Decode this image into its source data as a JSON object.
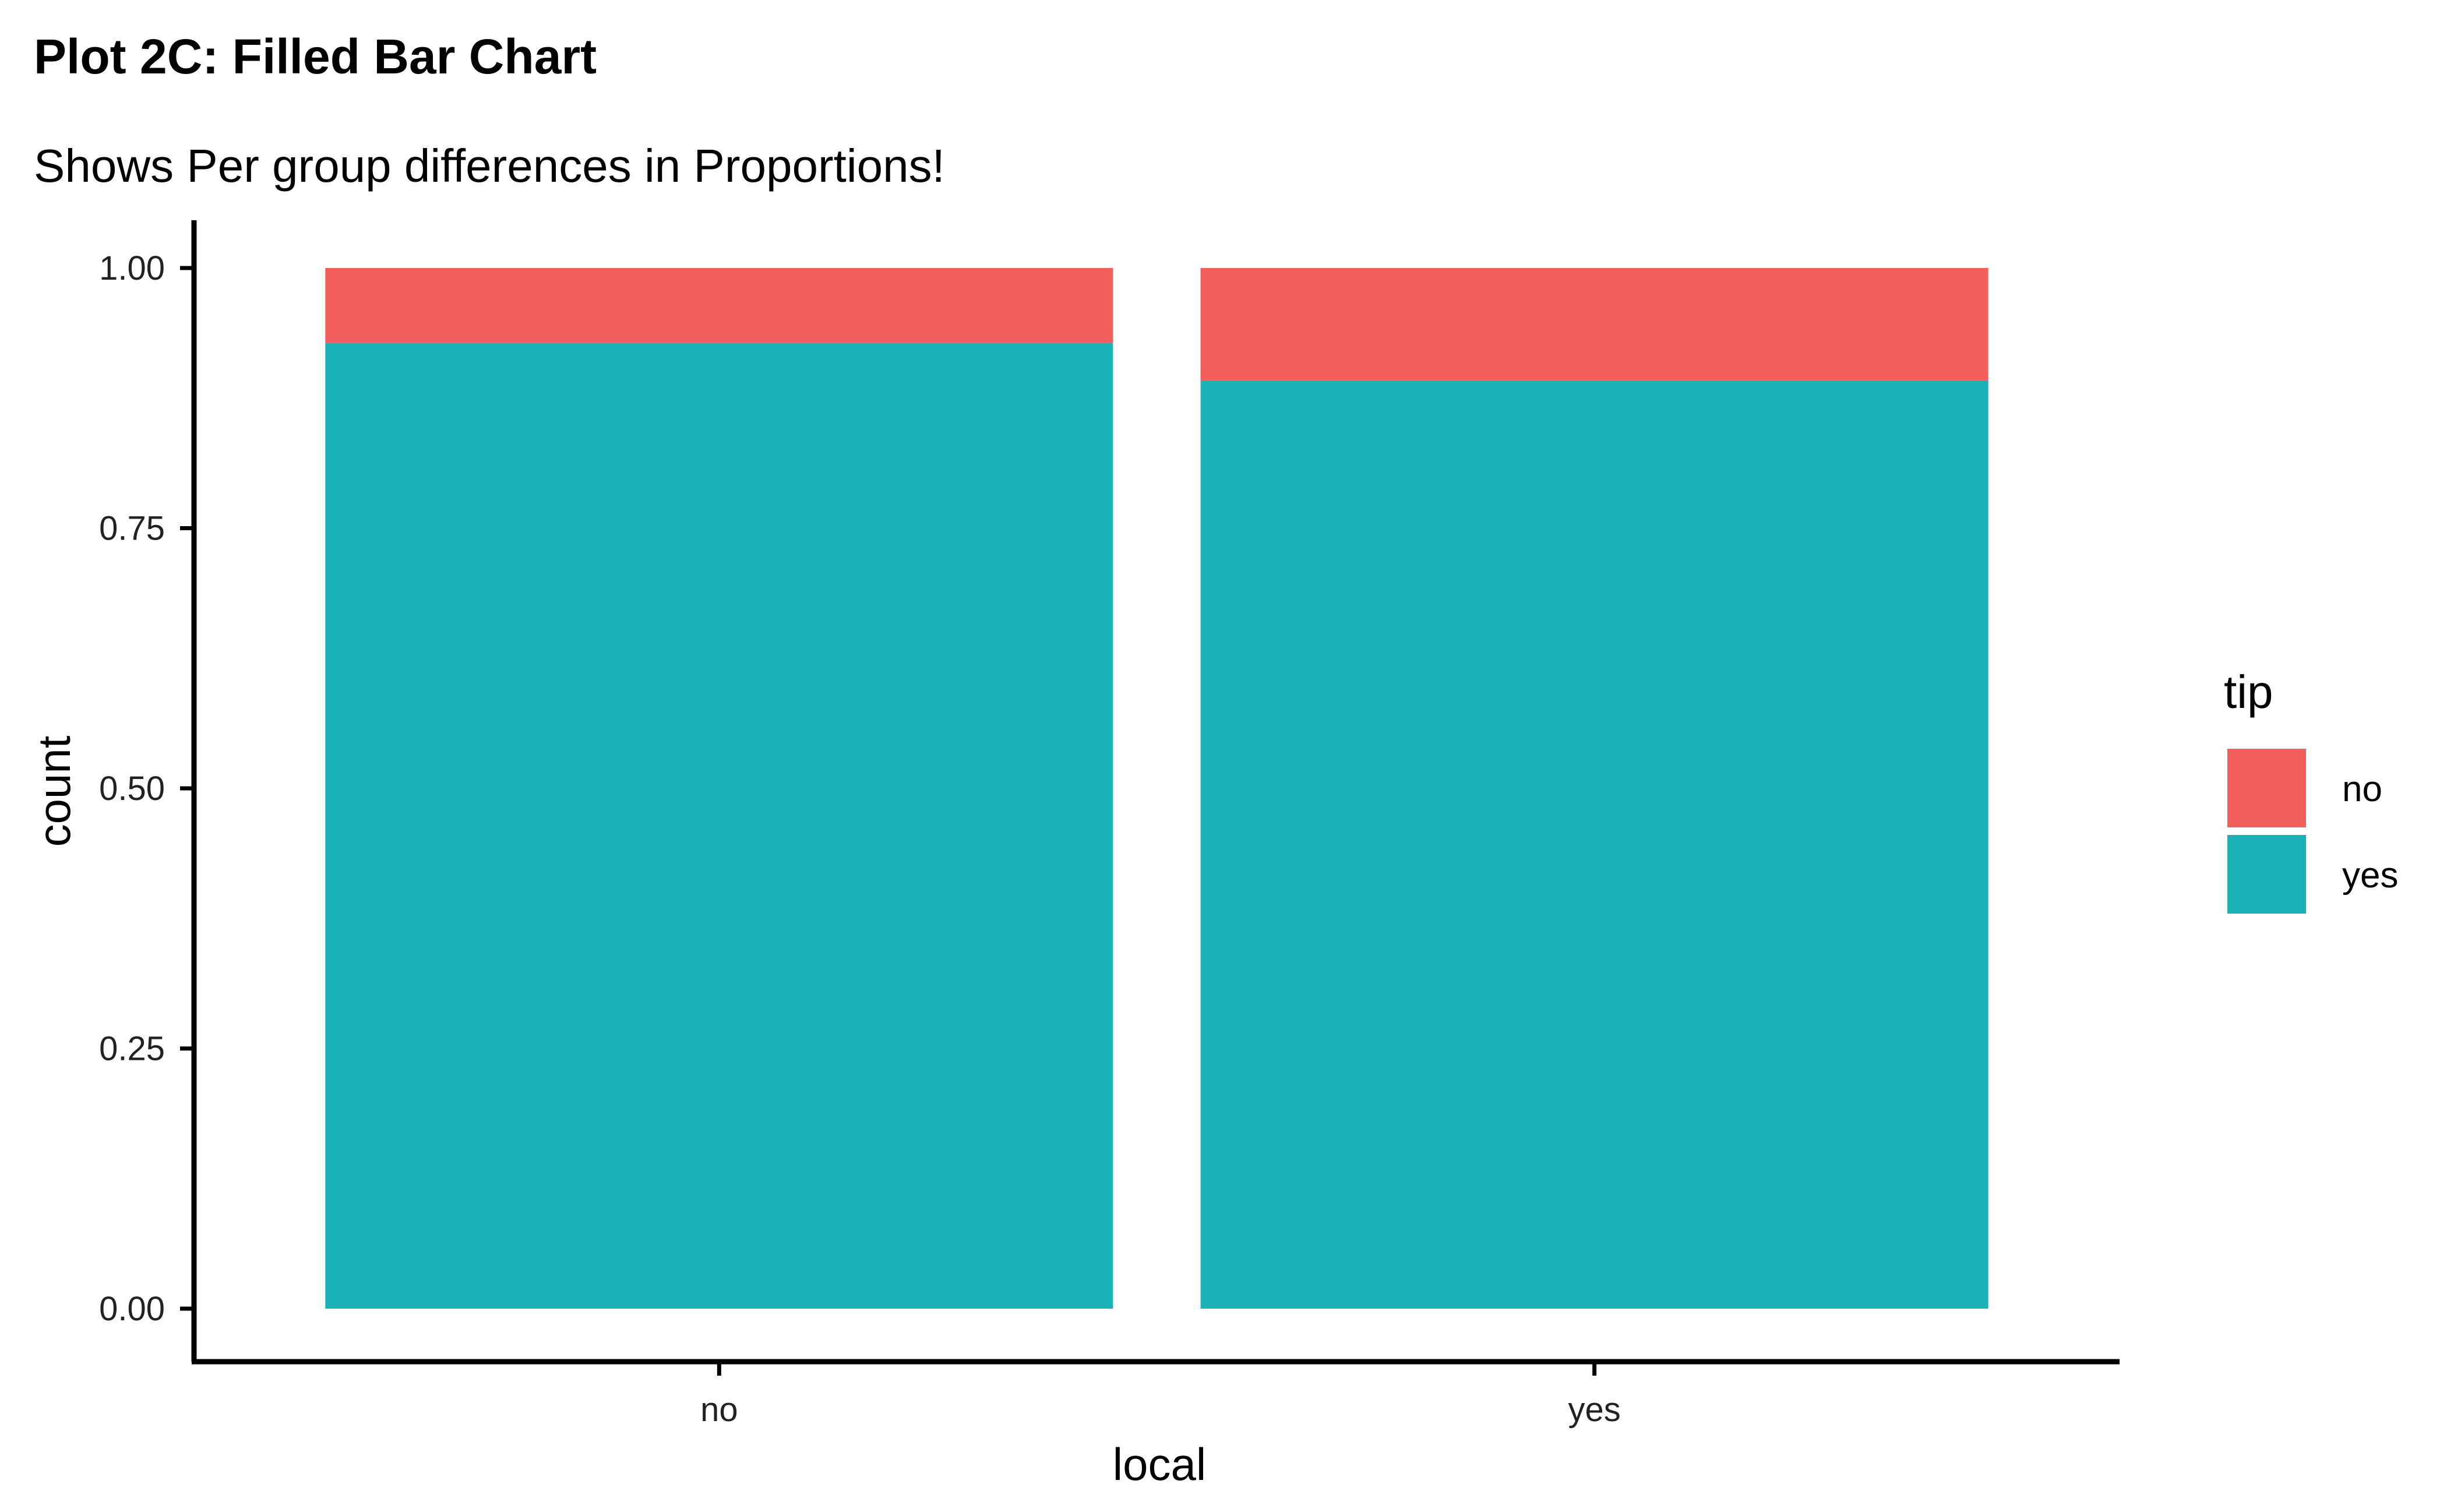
{
  "chart_data": {
    "type": "bar",
    "stacked": true,
    "position": "fill",
    "title": "Plot 2C: Filled Bar Chart",
    "subtitle": "Shows Per group differences in Proportions!",
    "xlabel": "local",
    "ylabel": "count",
    "categories": [
      "no",
      "yes"
    ],
    "series": [
      {
        "name": "no",
        "color": "#F25F5C",
        "values": [
          0.072,
          0.108
        ]
      },
      {
        "name": "yes",
        "color": "#1AB3B7",
        "values": [
          0.928,
          0.892
        ]
      }
    ],
    "ylim": [
      0,
      1
    ],
    "yticks": [
      "0.00",
      "0.25",
      "0.50",
      "0.75",
      "1.00"
    ],
    "grid": false,
    "legend": {
      "title": "tip",
      "placement": "right"
    }
  }
}
